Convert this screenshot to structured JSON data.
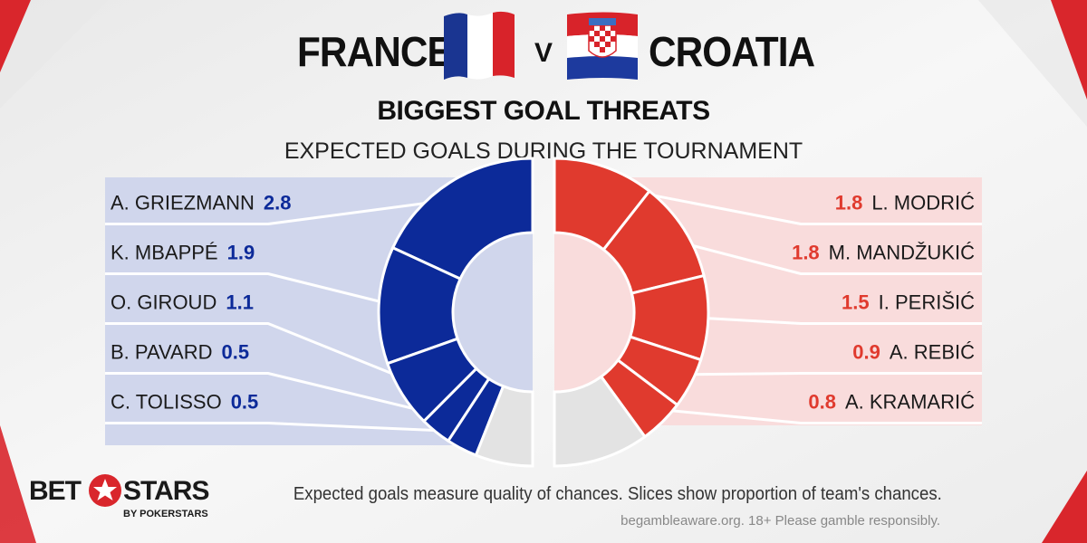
{
  "header": {
    "team_left": "FRANCE",
    "versus": "V",
    "team_right": "CROATIA",
    "subtitle": "BIGGEST GOAL THREATS",
    "caption": "EXPECTED GOALS DURING THE TOURNAMENT"
  },
  "colors": {
    "left_team": "#0c2a99",
    "right_team": "#e03a2e",
    "left_panel": "#d0d6ec",
    "right_panel": "#f9dcdc",
    "remainder": "#e3e3e3"
  },
  "chart_data": [
    {
      "type": "pie",
      "team": "FRANCE",
      "half": "left",
      "categories": [
        "A. GRIEZMANN",
        "K. MBAPPÉ",
        "O. GIROUD",
        "B. PAVARD",
        "C. TOLISSO"
      ],
      "values": [
        2.8,
        1.9,
        1.1,
        0.5,
        0.5
      ],
      "value_labels": [
        "2.8",
        "1.9",
        "1.1",
        "0.5",
        "0.5"
      ],
      "remainder_fraction": 0.12
    },
    {
      "type": "pie",
      "team": "CROATIA",
      "half": "right",
      "categories": [
        "L. MODRIĆ",
        "M. MANDŽUKIĆ",
        "I. PERIŠIĆ",
        "A. REBIĆ",
        "A. KRAMARIĆ"
      ],
      "values": [
        1.8,
        1.8,
        1.5,
        0.9,
        0.8
      ],
      "value_labels": [
        "1.8",
        "1.8",
        "1.5",
        "0.9",
        "0.8"
      ],
      "remainder_fraction": 0.2
    }
  ],
  "logo": {
    "bet": "BET",
    "stars": "STARS",
    "by": "BY POKERSTARS"
  },
  "footer": {
    "note": "Expected goals measure quality of chances. Slices show proportion of team's chances.",
    "gamble": "begambleaware.org.  18+ Please gamble responsibly."
  }
}
